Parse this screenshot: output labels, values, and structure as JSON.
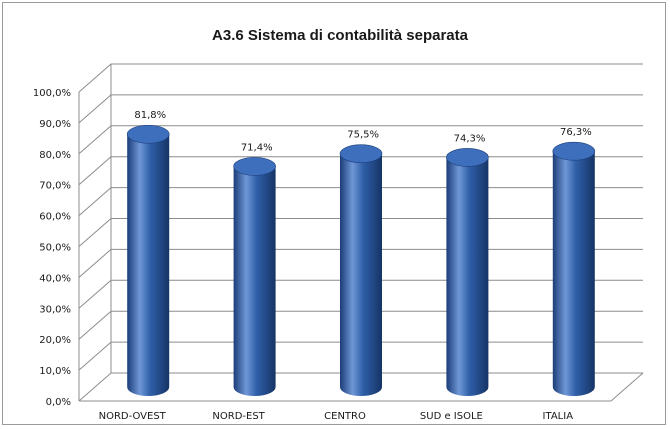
{
  "chart_data": {
    "type": "bar",
    "title": "A3.6 Sistema di contabilità separata",
    "categories": [
      "NORD-OVEST",
      "NORD-EST",
      "CENTRO",
      "SUD e ISOLE",
      "ITALIA"
    ],
    "values": [
      81.8,
      71.4,
      75.5,
      74.3,
      76.3
    ],
    "data_labels": [
      "81,8%",
      "71,4%",
      "75,5%",
      "74,3%",
      "76,3%"
    ],
    "y_ticks": [
      "0,0%",
      "10,0%",
      "20,0%",
      "30,0%",
      "40,0%",
      "50,0%",
      "60,0%",
      "70,0%",
      "80,0%",
      "90,0%",
      "100,0%"
    ],
    "ylim": [
      0,
      100
    ],
    "grid": true,
    "legend": "none",
    "style": "3d-cylinder",
    "colors": {
      "bar": "#2f5fa8",
      "bar_light": "#6f97d6",
      "bar_dark": "#1b3d78",
      "bar_top": "#3d6fbd"
    }
  }
}
